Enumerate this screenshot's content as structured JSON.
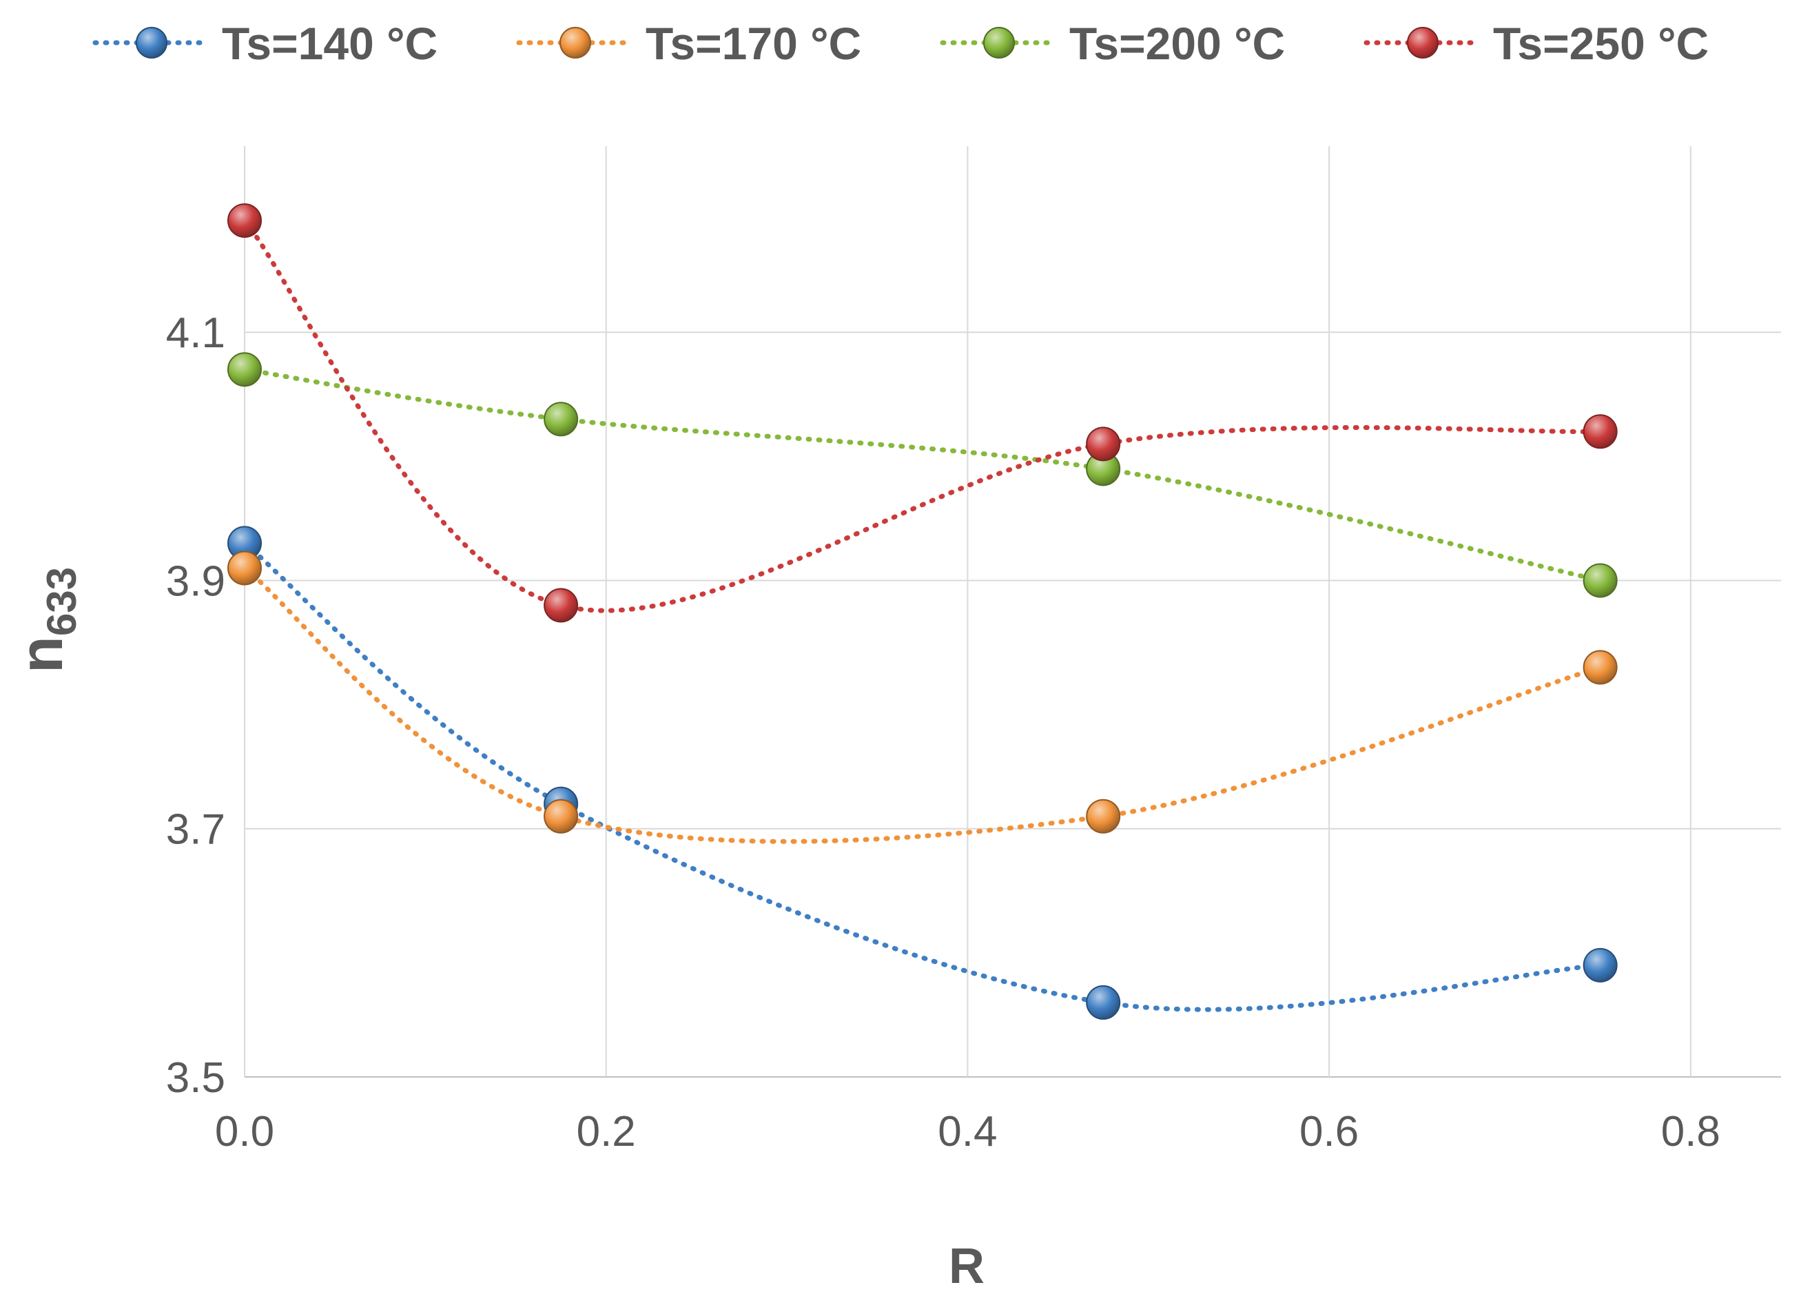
{
  "chart_data": {
    "type": "line",
    "title": "",
    "xlabel": "R",
    "ylabel": "n",
    "ylabel_subscript": "633",
    "xlim": [
      0.0,
      0.85
    ],
    "ylim": [
      3.5,
      4.25
    ],
    "x_ticks": [
      0.0,
      0.2,
      0.4,
      0.6,
      0.8
    ],
    "x_tick_labels": [
      "0.0",
      "0.2",
      "0.4",
      "0.6",
      "0.8"
    ],
    "y_ticks": [
      3.5,
      3.7,
      3.9,
      4.1
    ],
    "y_tick_labels": [
      "3.5",
      "3.7",
      "3.9",
      "4.1"
    ],
    "grid": true,
    "legend_position": "top",
    "line_style": "dotted-smoothed",
    "series": [
      {
        "name": "Ts=140 °C",
        "color": "#3f7fc4",
        "x": [
          0.0,
          0.175,
          0.475,
          0.75
        ],
        "values": [
          3.93,
          3.72,
          3.56,
          3.59
        ]
      },
      {
        "name": "Ts=170 °C",
        "color": "#f0923a",
        "x": [
          0.0,
          0.175,
          0.475,
          0.75
        ],
        "values": [
          3.91,
          3.71,
          3.71,
          3.83
        ]
      },
      {
        "name": "Ts=200 °C",
        "color": "#86b83c",
        "x": [
          0.0,
          0.175,
          0.475,
          0.75
        ],
        "values": [
          4.07,
          4.03,
          3.99,
          3.9
        ]
      },
      {
        "name": "Ts=250 °C",
        "color": "#cc3b3b",
        "x": [
          0.0,
          0.175,
          0.475,
          0.75
        ],
        "values": [
          4.19,
          3.88,
          4.01,
          4.02
        ]
      }
    ]
  }
}
